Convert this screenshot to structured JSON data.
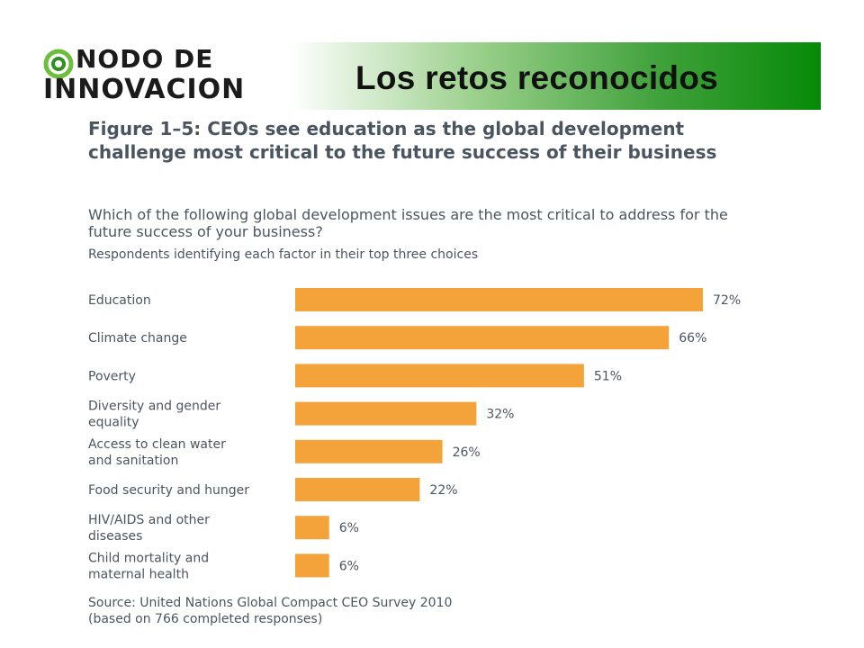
{
  "slide": {
    "title": "Los retos reconocidos",
    "logo_line1": "NODO DE",
    "logo_line2": "INNOVACION"
  },
  "figure": {
    "title": "Figure 1–5: CEOs see education as the global development challenge most critical to the future success of their business",
    "question": "Which of the following global development issues are the most critical to address for the future success of your business?",
    "subtitle": "Respondents identifying each factor in their top three choices",
    "source_line1": "Source: United Nations Global Compact CEO Survey 2010",
    "source_line2": "(based on 766 completed responses)"
  },
  "colors": {
    "bar": "#f3a33a",
    "text": "#4b5560",
    "header_green": "#078a08"
  },
  "chart_data": {
    "type": "bar",
    "orientation": "horizontal",
    "categories": [
      [
        "Education"
      ],
      [
        "Climate change"
      ],
      [
        "Poverty"
      ],
      [
        "Diversity and gender",
        "equality"
      ],
      [
        "Access to clean water",
        "and sanitation"
      ],
      [
        "Food security and hunger"
      ],
      [
        "HIV/AIDS and other",
        "diseases"
      ],
      [
        "Child mortality  and",
        "maternal health"
      ]
    ],
    "values": [
      72,
      66,
      51,
      32,
      26,
      22,
      6,
      6
    ],
    "value_labels": [
      "72%",
      "66%",
      "51%",
      "32%",
      "26%",
      "22%",
      "6%",
      "6%"
    ],
    "unit": "%",
    "xlim": [
      0,
      72
    ],
    "grid": false,
    "legend": "none"
  }
}
